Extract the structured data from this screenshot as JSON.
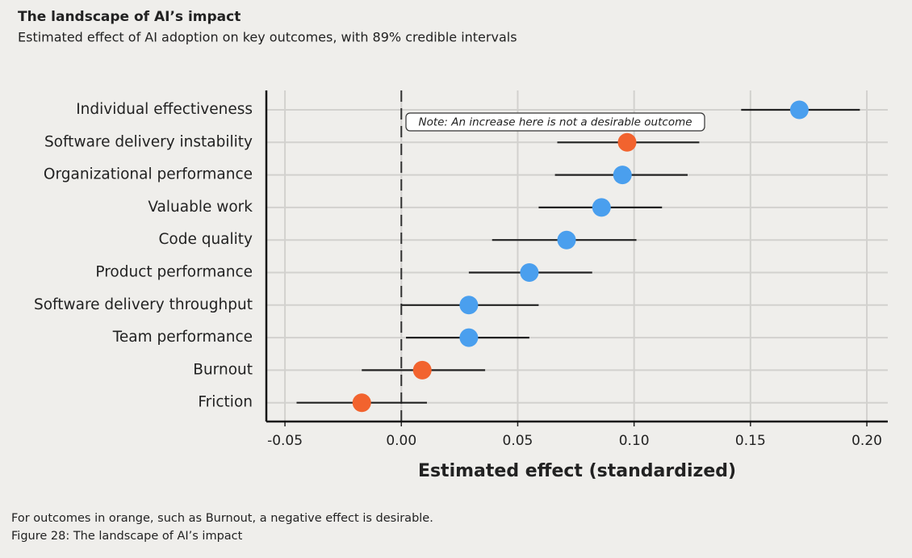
{
  "chart_data": {
    "type": "dot-interval",
    "title": "The landscape of AI’s impact",
    "subtitle": "Estimated effect of AI adoption on key outcomes, with 89% credible intervals",
    "x_label": "Estimated effect (standardized)",
    "annotation": "Note: An increase here is not a desirable outcome",
    "footnote": "For outcomes in orange, such as Burnout, a negative effect is desirable.",
    "caption": "Figure 28: The landscape of AI’s impact",
    "categories": [
      "Individual effectiveness",
      "Software delivery instability",
      "Organizational performance",
      "Valuable work",
      "Code quality",
      "Product performance",
      "Software delivery throughput",
      "Team performance",
      "Burnout",
      "Friction"
    ],
    "values": [
      0.171,
      0.097,
      0.095,
      0.086,
      0.071,
      0.055,
      0.029,
      0.029,
      0.009,
      -0.017
    ],
    "lower": [
      0.146,
      0.067,
      0.066,
      0.059,
      0.039,
      0.029,
      0.0,
      0.002,
      -0.017,
      -0.045
    ],
    "upper": [
      0.197,
      0.128,
      0.123,
      0.112,
      0.101,
      0.082,
      0.059,
      0.055,
      0.036,
      0.011
    ],
    "colors": [
      "#4a9fee",
      "#f2632e",
      "#4a9fee",
      "#4a9fee",
      "#4a9fee",
      "#4a9fee",
      "#4a9fee",
      "#4a9fee",
      "#f2632e",
      "#f2632e"
    ],
    "xlim": [
      -0.058,
      0.209
    ],
    "xticks": [
      -0.05,
      {
        "value": 0,
        "label": "0.00"
      },
      0.05,
      {
        "value": 0.1,
        "label": "0.10"
      },
      0.15,
      {
        "value": 0.2,
        "label": "0.20"
      }
    ],
    "reference_line": 0,
    "grid": true
  }
}
